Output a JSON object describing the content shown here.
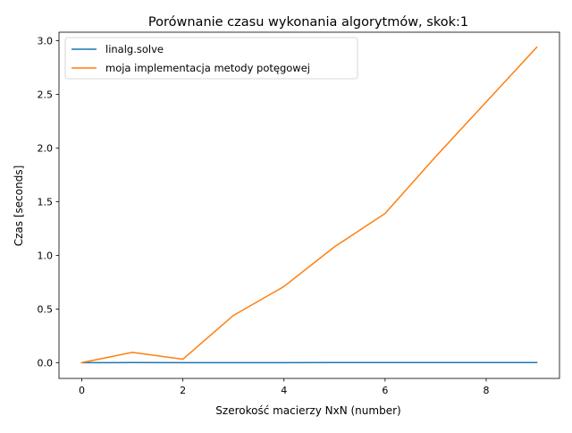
{
  "chart_data": {
    "type": "line",
    "title": "Porównanie czasu wykonania algorytmów, skok:1",
    "xlabel": "Szerokość macierzy NxN (number)",
    "ylabel": "Czas [seconds]",
    "x": [
      0,
      1,
      2,
      3,
      4,
      5,
      6,
      7,
      8,
      9
    ],
    "xlim": [
      -0.45,
      9.45
    ],
    "ylim": [
      -0.147,
      3.08
    ],
    "xticks": [
      0,
      2,
      4,
      6,
      8
    ],
    "xtick_labels": [
      "0",
      "2",
      "4",
      "6",
      "8"
    ],
    "yticks": [
      0.0,
      0.5,
      1.0,
      1.5,
      2.0,
      2.5,
      3.0
    ],
    "ytick_labels": [
      "0.0",
      "0.5",
      "1.0",
      "1.5",
      "2.0",
      "2.5",
      "3.0"
    ],
    "grid": false,
    "legend_position": "upper-left",
    "series": [
      {
        "name": "linalg.solve",
        "color": "#1f77b4",
        "values": [
          0.0,
          0.0005,
          0.0003,
          0.0004,
          0.0004,
          0.0005,
          0.0005,
          0.0006,
          0.0006,
          0.0007
        ]
      },
      {
        "name": "moja implementacja metody potęgowej",
        "color": "#ff7f0e",
        "values": [
          0.0,
          0.096,
          0.032,
          0.44,
          0.71,
          1.08,
          1.39,
          1.92,
          2.43,
          2.94
        ]
      }
    ]
  }
}
